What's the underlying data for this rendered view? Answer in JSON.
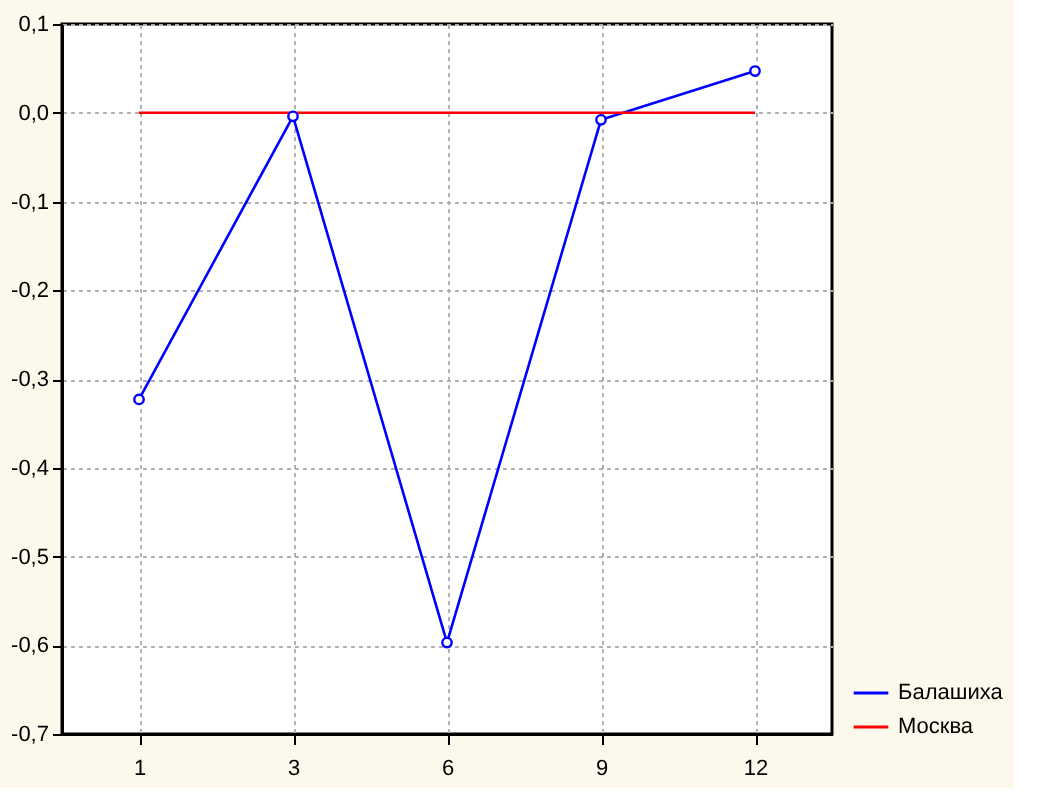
{
  "chart_data": {
    "type": "line",
    "categories": [
      "1",
      "3",
      "6",
      "9",
      "12"
    ],
    "series": [
      {
        "name": "Балашиха",
        "color": "#0000ff",
        "marker": "circle",
        "values": [
          -0.323,
          -0.004,
          -0.597,
          -0.008,
          0.047
        ]
      },
      {
        "name": "Москва",
        "color": "#ff0000",
        "marker": "none",
        "values": [
          0,
          0,
          0,
          0,
          0
        ]
      }
    ],
    "ylim": [
      -0.7,
      0.1
    ],
    "yticks": [
      {
        "value": -0.7,
        "label": "-0,7"
      },
      {
        "value": -0.6,
        "label": "-0,6"
      },
      {
        "value": -0.5,
        "label": "-0,5"
      },
      {
        "value": -0.4,
        "label": "-0,4"
      },
      {
        "value": -0.3,
        "label": "-0,3"
      },
      {
        "value": -0.2,
        "label": "-0,2"
      },
      {
        "value": -0.1,
        "label": "-0,1"
      },
      {
        "value": 0,
        "label": "0,0"
      },
      {
        "value": 0.1,
        "label": "0,1"
      }
    ],
    "grid": true,
    "legend": "bottom right",
    "line_style": "solid"
  }
}
